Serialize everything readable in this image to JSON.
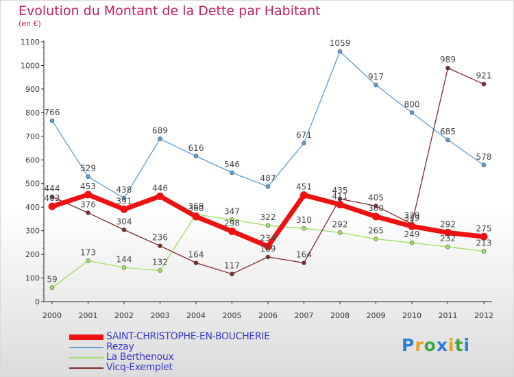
{
  "header": {
    "title": "Evolution du Montant de la Dette par Habitant",
    "unit": "(en €)"
  },
  "logo": {
    "letters": [
      "P",
      "r",
      "o",
      "x",
      "i",
      "t",
      "i"
    ],
    "colors": [
      "#2a7fd4",
      "#e8a020",
      "#3aa83a",
      "#2a7fd4",
      "#e8a020",
      "#3aa83a",
      "#2a7fd4"
    ]
  },
  "chart_data": {
    "type": "line",
    "title": "Evolution du Montant de la Dette par Habitant",
    "ylabel": "(en €)",
    "xlabel": "",
    "ylim": [
      0,
      1100
    ],
    "yticks": [
      0,
      100,
      200,
      300,
      400,
      500,
      600,
      700,
      800,
      900,
      1000,
      1100
    ],
    "categories": [
      "2000",
      "2001",
      "2002",
      "2003",
      "2004",
      "2005",
      "2006",
      "2007",
      "2008",
      "2009",
      "2010",
      "2011",
      "2012"
    ],
    "legend_position": "bottom-left",
    "grid": false,
    "series": [
      {
        "name": "SAINT-CHRISTOPHE-EN-BOUCHERIE",
        "color": "#ee1111",
        "width": 7,
        "values": [
          403,
          453,
          391,
          446,
          360,
          298,
          234,
          451,
          411,
          360,
          319,
          292,
          275
        ]
      },
      {
        "name": "Rezay",
        "color": "#5b9ed6",
        "width": 1.3,
        "values": [
          766,
          529,
          438,
          689,
          616,
          546,
          487,
          671,
          1059,
          917,
          800,
          685,
          578
        ]
      },
      {
        "name": "La Berthenoux",
        "color": "#9ee060",
        "width": 1.3,
        "values": [
          59,
          173,
          144,
          132,
          369,
          347,
          322,
          310,
          292,
          265,
          249,
          232,
          213
        ]
      },
      {
        "name": "Vicq-Exemplet",
        "color": "#7a2a2a",
        "width": 1.3,
        "values": [
          444,
          376,
          304,
          236,
          164,
          117,
          189,
          164,
          435,
          405,
          329,
          989,
          921
        ]
      }
    ]
  }
}
